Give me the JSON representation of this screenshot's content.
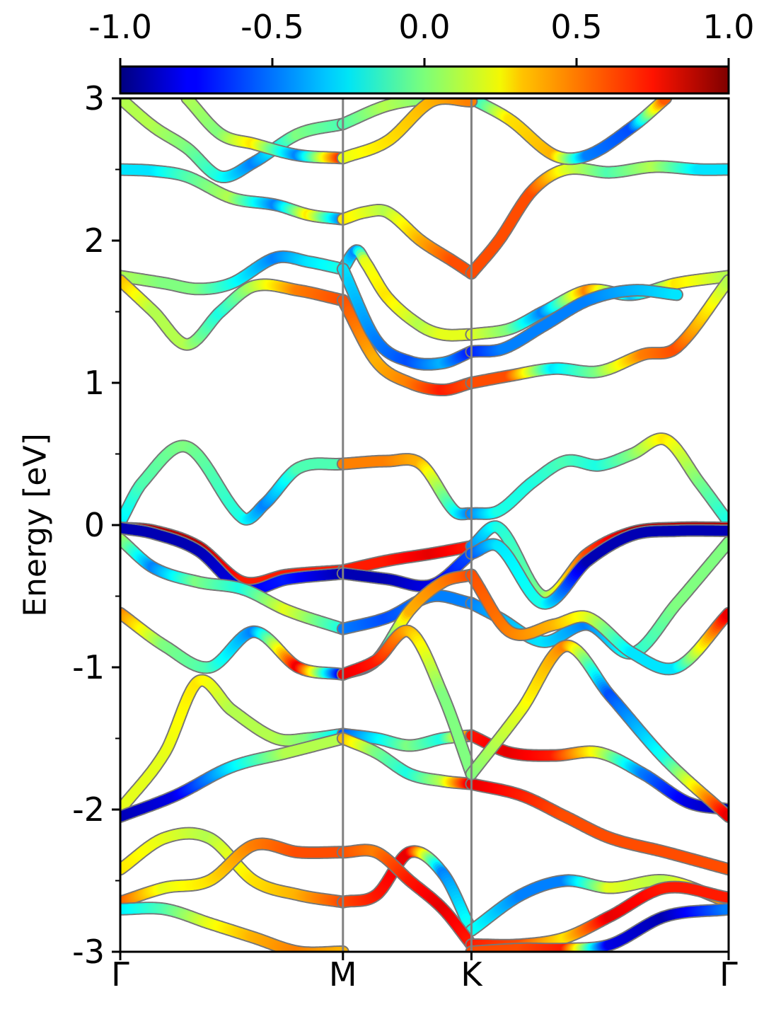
{
  "chart_data": {
    "type": "line",
    "title": "",
    "ylabel": "Energy [eV]",
    "xlabel": "",
    "ylim": [
      -3,
      3
    ],
    "yticks": [
      "-3",
      "-2",
      "-1",
      "0",
      "1",
      "2",
      "3"
    ],
    "yticks_values": [
      -3,
      -2,
      -1,
      0,
      1,
      2,
      3
    ],
    "xticks": [
      "Γ",
      "M",
      "K",
      "Γ"
    ],
    "xticks_positions": [
      0,
      1,
      1.577,
      2.732
    ],
    "xlim": [
      0,
      2.732
    ],
    "grid": false,
    "legend": "none",
    "colorbar": {
      "min": -1.0,
      "max": 1.0,
      "colormap": "jet",
      "placement": "top",
      "ticks": [
        "-1.0",
        "-0.5",
        "0.0",
        "0.5",
        "1.0"
      ],
      "tick_values": [
        -1.0,
        -0.5,
        0.0,
        0.5,
        1.0
      ]
    },
    "series": [
      {
        "x": [
          0,
          0.15,
          0.3,
          0.5,
          0.7,
          0.85,
          1.0
        ],
        "y": [
          2.5,
          2.49,
          2.45,
          2.3,
          2.25,
          2.18,
          2.15
        ],
        "c": [
          -0.3,
          -0.3,
          -0.1,
          0.1,
          -0.5,
          0.3,
          -0.5
        ]
      },
      {
        "x": [
          1.0,
          1.1,
          1.2,
          1.35,
          1.5,
          1.577
        ],
        "y": [
          2.15,
          2.2,
          2.2,
          2.0,
          1.85,
          1.77
        ],
        "c": [
          0.3,
          0.2,
          0.1,
          0.4,
          0.6,
          0.6
        ]
      },
      {
        "x": [
          1.577,
          1.7,
          1.85,
          2.0,
          2.2,
          2.4,
          2.6,
          2.732
        ],
        "y": [
          1.77,
          2.0,
          2.35,
          2.5,
          2.48,
          2.52,
          2.5,
          2.5
        ],
        "c": [
          0.6,
          0.6,
          0.6,
          0.2,
          -0.1,
          0.1,
          -0.3,
          -0.3
        ]
      },
      {
        "x": [
          0,
          0.2,
          0.35,
          0.5,
          0.7,
          0.85,
          1.0
        ],
        "y": [
          1.75,
          1.7,
          1.66,
          1.7,
          1.88,
          1.85,
          1.8
        ],
        "c": [
          0.1,
          0.0,
          0.0,
          -0.2,
          -0.5,
          -0.3,
          -0.2
        ]
      },
      {
        "x": [
          1.0,
          1.06,
          1.1,
          1.2,
          1.35,
          1.45,
          1.577
        ],
        "y": [
          1.8,
          1.93,
          1.85,
          1.6,
          1.4,
          1.34,
          1.34
        ],
        "c": [
          -0.2,
          -0.5,
          0.2,
          0.3,
          0.1,
          0.2,
          0.2
        ]
      },
      {
        "x": [
          1.577,
          1.75,
          1.9,
          2.1,
          2.3,
          2.5,
          2.732
        ],
        "y": [
          1.34,
          1.38,
          1.5,
          1.65,
          1.62,
          1.7,
          1.75
        ],
        "c": [
          0.2,
          0.0,
          -0.5,
          0.5,
          -0.4,
          0.3,
          0.1
        ]
      },
      {
        "x": [
          0,
          0.15,
          0.3,
          0.45,
          0.6,
          0.8,
          1.0
        ],
        "y": [
          1.72,
          1.5,
          1.27,
          1.5,
          1.68,
          1.65,
          1.58
        ],
        "c": [
          0.4,
          0.1,
          0.1,
          -0.2,
          0.1,
          0.5,
          0.6
        ]
      },
      {
        "x": [
          1.0,
          1.15,
          1.3,
          1.45,
          1.577
        ],
        "y": [
          1.58,
          1.15,
          1.0,
          0.95,
          1.0
        ],
        "c": [
          0.6,
          0.4,
          0.5,
          0.7,
          0.6
        ]
      },
      {
        "x": [
          1.577,
          1.75,
          1.95,
          2.15,
          2.35,
          2.5,
          2.732
        ],
        "y": [
          1.0,
          1.05,
          1.1,
          1.08,
          1.2,
          1.25,
          1.72
        ],
        "c": [
          0.6,
          0.6,
          -0.3,
          0.0,
          0.5,
          0.6,
          0.1
        ]
      },
      {
        "x": [
          1.0,
          1.15,
          1.3,
          1.45,
          1.577
        ],
        "y": [
          1.8,
          1.3,
          1.15,
          1.14,
          1.22
        ],
        "c": [
          -0.3,
          -0.5,
          -0.6,
          -0.4,
          -0.7
        ]
      },
      {
        "x": [
          1.577,
          1.72,
          1.9,
          2.1,
          2.3,
          2.5
        ],
        "y": [
          1.22,
          1.24,
          1.4,
          1.58,
          1.65,
          1.62
        ],
        "c": [
          -0.7,
          -0.5,
          -0.5,
          -0.5,
          -0.4,
          -0.3
        ]
      },
      {
        "x": [
          0,
          0.1,
          0.3,
          0.55,
          0.65,
          0.8,
          1.0
        ],
        "y": [
          0.02,
          0.3,
          0.55,
          0.05,
          0.15,
          0.4,
          0.43
        ],
        "c": [
          -0.3,
          -0.1,
          0.0,
          -0.2,
          -0.5,
          -0.1,
          -0.1
        ]
      },
      {
        "x": [
          1.0,
          1.2,
          1.35,
          1.5,
          1.577
        ],
        "y": [
          0.43,
          0.45,
          0.43,
          0.1,
          0.08
        ],
        "c": [
          0.5,
          0.5,
          0.4,
          -0.2,
          -0.5
        ]
      },
      {
        "x": [
          1.577,
          1.7,
          1.85,
          2.0,
          2.15,
          2.3,
          2.45,
          2.6,
          2.732
        ],
        "y": [
          0.08,
          0.1,
          0.3,
          0.45,
          0.42,
          0.5,
          0.6,
          0.3,
          0.02
        ],
        "c": [
          -0.5,
          -0.2,
          -0.2,
          -0.1,
          -0.2,
          0.0,
          0.3,
          0.0,
          -0.2
        ]
      },
      {
        "x": [
          0,
          0.15,
          0.35,
          0.55,
          0.75,
          1.0
        ],
        "y": [
          -0.02,
          -0.04,
          -0.15,
          -0.4,
          -0.35,
          -0.32
        ],
        "c": [
          0.9,
          0.9,
          0.9,
          0.7,
          0.7,
          0.7
        ]
      },
      {
        "x": [
          1.0,
          1.2,
          1.4,
          1.577
        ],
        "y": [
          -0.32,
          -0.25,
          -0.2,
          -0.15
        ],
        "c": [
          0.7,
          0.7,
          0.8,
          0.7
        ]
      },
      {
        "x": [
          1.577,
          1.7,
          1.9,
          2.1,
          2.3,
          2.5,
          2.732
        ],
        "y": [
          -0.15,
          -0.02,
          -0.5,
          -0.2,
          -0.05,
          -0.02,
          -0.02
        ],
        "c": [
          -0.5,
          -0.2,
          0.0,
          0.6,
          0.9,
          0.9,
          0.9
        ]
      },
      {
        "x": [
          0,
          0.15,
          0.35,
          0.55,
          0.75,
          1.0
        ],
        "y": [
          -0.02,
          -0.06,
          -0.18,
          -0.45,
          -0.38,
          -0.34
        ],
        "c": [
          -0.9,
          -0.9,
          -0.9,
          -0.8,
          -0.7,
          -0.9
        ]
      },
      {
        "x": [
          1.0,
          1.2,
          1.4,
          1.577
        ],
        "y": [
          -0.34,
          -0.38,
          -0.42,
          -0.2
        ],
        "c": [
          -0.9,
          -0.9,
          -0.8,
          -0.6
        ]
      },
      {
        "x": [
          1.577,
          1.7,
          1.9,
          2.1,
          2.3,
          2.5,
          2.732
        ],
        "y": [
          -0.2,
          -0.15,
          -0.55,
          -0.25,
          -0.07,
          -0.04,
          -0.04
        ],
        "c": [
          -0.6,
          -0.3,
          -0.2,
          -0.9,
          -0.9,
          -0.9,
          -0.9
        ]
      },
      {
        "x": [
          0,
          0.15,
          0.35,
          0.55,
          0.75,
          1.0
        ],
        "y": [
          -0.1,
          -0.3,
          -0.4,
          -0.45,
          -0.6,
          -0.73
        ],
        "c": [
          0.1,
          -0.5,
          0.0,
          -0.2,
          0.2,
          -0.2
        ]
      },
      {
        "x": [
          1.0,
          1.2,
          1.4,
          1.577
        ],
        "y": [
          -0.73,
          -0.65,
          -0.5,
          -0.55
        ],
        "c": [
          -0.5,
          -0.6,
          -0.5,
          -0.5
        ]
      },
      {
        "x": [
          1.577,
          1.7,
          1.9,
          2.1,
          2.3,
          2.5,
          2.732
        ],
        "y": [
          -0.55,
          -0.65,
          -0.82,
          -0.7,
          -0.9,
          -0.55,
          -0.12
        ],
        "c": [
          -0.5,
          -0.4,
          -0.3,
          -0.5,
          -0.2,
          0.0,
          0.0
        ]
      },
      {
        "x": [
          0,
          0.2,
          0.4,
          0.6,
          0.8,
          1.0
        ],
        "y": [
          -0.62,
          -0.85,
          -1.0,
          -0.75,
          -1.0,
          -1.05
        ],
        "c": [
          0.5,
          0.0,
          -0.1,
          -0.5,
          0.8,
          -0.8
        ]
      },
      {
        "x": [
          1.0,
          1.15,
          1.3,
          1.45,
          1.577
        ],
        "y": [
          -1.05,
          -0.95,
          -0.6,
          -0.4,
          -0.35
        ],
        "c": [
          -0.8,
          -0.5,
          0.4,
          0.5,
          0.6
        ]
      },
      {
        "x": [
          1.577,
          1.75,
          1.95,
          2.1,
          2.3,
          2.5,
          2.732
        ],
        "y": [
          -0.35,
          -0.75,
          -0.7,
          -0.65,
          -0.9,
          -1.0,
          -0.62
        ],
        "c": [
          0.6,
          0.5,
          0.4,
          0.2,
          -0.3,
          -0.3,
          0.8
        ]
      },
      {
        "x": [
          0,
          0.2,
          0.35,
          0.5,
          0.7,
          0.85,
          1.0
        ],
        "y": [
          -2.0,
          -1.6,
          -1.1,
          -1.3,
          -1.5,
          -1.5,
          -1.47
        ],
        "c": [
          0.2,
          0.2,
          0.3,
          0.1,
          0.1,
          0.0,
          -0.3
        ]
      },
      {
        "x": [
          1.0,
          1.15,
          1.3,
          1.45,
          1.577
        ],
        "y": [
          -1.47,
          -1.5,
          -1.55,
          -1.5,
          -1.48
        ],
        "c": [
          -0.6,
          -0.3,
          0.0,
          -0.2,
          0.5
        ]
      },
      {
        "x": [
          1.577,
          1.75,
          1.95,
          2.15,
          2.35,
          2.55,
          2.732
        ],
        "y": [
          -1.48,
          -1.6,
          -1.62,
          -1.6,
          -1.75,
          -1.95,
          -2.0
        ],
        "c": [
          0.7,
          0.8,
          0.7,
          0.2,
          -0.5,
          -0.8,
          -0.9
        ]
      },
      {
        "x": [
          0,
          0.25,
          0.5,
          0.75,
          1.0
        ],
        "y": [
          -2.05,
          -1.9,
          -1.7,
          -1.6,
          -1.5
        ],
        "c": [
          -0.9,
          -0.8,
          -0.3,
          0.1,
          0.1
        ]
      },
      {
        "x": [
          1.0,
          1.15,
          1.3,
          1.45,
          1.577
        ],
        "y": [
          -1.5,
          -1.6,
          -1.75,
          -1.8,
          -1.82
        ],
        "c": [
          0.4,
          0.0,
          -0.2,
          0.1,
          0.8
        ]
      },
      {
        "x": [
          1.577,
          1.8,
          2.0,
          2.2,
          2.45,
          2.732
        ],
        "y": [
          -1.82,
          -1.9,
          -2.05,
          -2.2,
          -2.3,
          -2.42
        ],
        "c": [
          0.8,
          0.7,
          0.6,
          0.6,
          0.6,
          0.6
        ]
      },
      {
        "x": [
          1.0,
          1.15,
          1.3,
          1.45,
          1.577
        ],
        "y": [
          -1.05,
          -0.95,
          -0.75,
          -1.2,
          -1.75
        ],
        "c": [
          0.8,
          0.7,
          0.4,
          0.0,
          0.0
        ]
      },
      {
        "x": [
          1.577,
          1.8,
          2.0,
          2.2,
          2.45,
          2.732
        ],
        "y": [
          -1.75,
          -1.3,
          -0.85,
          -1.2,
          -1.65,
          -2.05
        ],
        "c": [
          0.0,
          0.2,
          0.5,
          -0.6,
          -0.2,
          0.8
        ]
      },
      {
        "x": [
          0,
          0.2,
          0.4,
          0.6,
          0.8,
          1.0
        ],
        "y": [
          -2.42,
          -2.2,
          -2.2,
          -2.5,
          -2.6,
          -2.65
        ],
        "c": [
          0.3,
          0.2,
          0.1,
          0.3,
          0.4,
          0.6
        ]
      },
      {
        "x": [
          1.0,
          1.15,
          1.3,
          1.45,
          1.577
        ],
        "y": [
          -2.65,
          -2.6,
          -2.3,
          -2.45,
          -2.85
        ],
        "c": [
          0.6,
          0.7,
          0.8,
          -0.5,
          -0.2
        ]
      },
      {
        "x": [
          1.577,
          1.8,
          2.0,
          2.2,
          2.45,
          2.732
        ],
        "y": [
          -2.85,
          -2.6,
          -2.5,
          -2.55,
          -2.5,
          -2.65
        ],
        "c": [
          -0.2,
          -0.5,
          -0.5,
          0.2,
          0.1,
          0.5
        ]
      },
      {
        "x": [
          0,
          0.2,
          0.4,
          0.6,
          0.8,
          1.0
        ],
        "y": [
          -2.65,
          -2.55,
          -2.5,
          -2.25,
          -2.3,
          -2.3
        ],
        "c": [
          0.6,
          0.2,
          0.3,
          0.5,
          0.6,
          0.6
        ]
      },
      {
        "x": [
          1.0,
          1.15,
          1.3,
          1.45,
          1.577
        ],
        "y": [
          -2.3,
          -2.3,
          -2.5,
          -2.7,
          -2.95
        ],
        "c": [
          0.6,
          0.5,
          0.7,
          0.8,
          0.7
        ]
      },
      {
        "x": [
          1.577,
          1.8,
          2.0,
          2.2,
          2.45,
          2.732
        ],
        "y": [
          -2.95,
          -2.95,
          -2.9,
          -2.75,
          -2.55,
          -2.62
        ],
        "c": [
          0.7,
          0.6,
          0.3,
          0.8,
          0.7,
          0.7
        ]
      },
      {
        "x": [
          0,
          0.2,
          0.4,
          0.6,
          0.8,
          1.0
        ],
        "y": [
          -2.7,
          -2.7,
          -2.8,
          -2.9,
          -3.0,
          -3.0
        ],
        "c": [
          -0.3,
          -0.1,
          0.2,
          0.4,
          0.5,
          0.4
        ]
      },
      {
        "x": [
          1.577,
          1.8,
          2.0,
          2.2,
          2.45,
          2.732
        ],
        "y": [
          -3.0,
          -2.98,
          -2.98,
          -2.95,
          -2.75,
          -2.7
        ],
        "c": [
          0.6,
          0.6,
          0.7,
          -0.8,
          -0.9,
          -0.5
        ]
      },
      {
        "x": [
          0,
          0.15,
          0.3,
          0.45,
          0.6,
          0.8,
          1.0
        ],
        "y": [
          3.0,
          2.8,
          2.65,
          2.45,
          2.55,
          2.75,
          2.82
        ],
        "c": [
          0.1,
          0.1,
          0.0,
          -0.2,
          -0.5,
          0.0,
          -0.1
        ]
      },
      {
        "x": [
          1.0,
          1.2,
          1.4,
          1.577
        ],
        "y": [
          2.82,
          2.95,
          3.0,
          3.0
        ],
        "c": [
          -0.1,
          0.1,
          0.0,
          -0.3
        ]
      },
      {
        "x": [
          1.577,
          1.75,
          1.95,
          2.1,
          2.3,
          2.45
        ],
        "y": [
          3.0,
          2.85,
          2.6,
          2.6,
          2.8,
          3.0
        ],
        "c": [
          -0.3,
          0.3,
          0.4,
          -0.5,
          -0.6,
          0.6
        ]
      },
      {
        "x": [
          0.3,
          0.45,
          0.6,
          0.8,
          1.0
        ],
        "y": [
          3.0,
          2.75,
          2.68,
          2.6,
          2.58
        ],
        "c": [
          0.1,
          0.0,
          0.3,
          -0.5,
          0.7
        ]
      },
      {
        "x": [
          1.0,
          1.2,
          1.4,
          1.577
        ],
        "y": [
          2.58,
          2.7,
          2.98,
          2.98
        ],
        "c": [
          0.2,
          0.3,
          0.4,
          0.5
        ]
      }
    ]
  }
}
